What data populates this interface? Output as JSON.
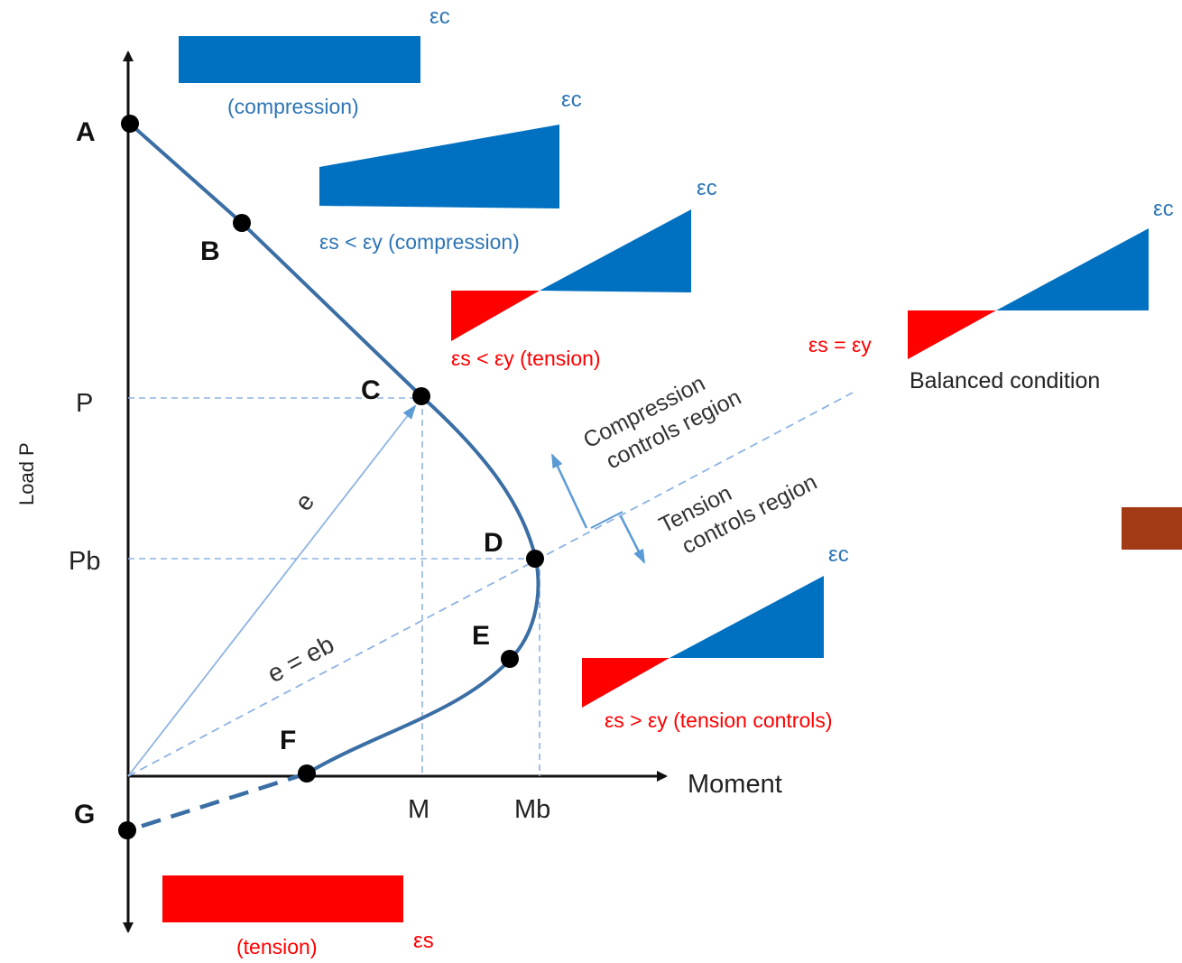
{
  "axes": {
    "y_label": "Load P",
    "x_label": "Moment",
    "y_ticks": {
      "p": "P",
      "pb": "Pb"
    },
    "x_ticks": {
      "m": "M",
      "mb": "Mb"
    }
  },
  "points": {
    "a": "A",
    "b": "B",
    "c": "C",
    "d": "D",
    "e": "E",
    "f": "F",
    "g": "G"
  },
  "lines": {
    "e": "e",
    "eb": "e = eb"
  },
  "regions": {
    "compression_line1": "Compression",
    "compression_line2": "controls region",
    "tension_line1": "Tension",
    "tension_line2": "controls region"
  },
  "strain_diagrams": {
    "pure_compression": {
      "top": "εc",
      "caption": "(compression)"
    },
    "compression_small": {
      "top": "εc",
      "caption": "εs < εy (compression)"
    },
    "tension_small": {
      "top": "εc",
      "caption": "εs < εy (tension)"
    },
    "balanced": {
      "top": "εc",
      "left": "εs = εy",
      "caption": "Balanced condition"
    },
    "tension_controls": {
      "top": "εc",
      "caption": "εs > εy (tension controls)"
    },
    "pure_tension": {
      "side": "εs",
      "caption": "(tension)"
    }
  },
  "colors": {
    "compression": "#0070c0",
    "tension": "#ff0000",
    "curve": "#3a6ea5",
    "guide": "#8db3e2",
    "slide_accent": "#a33a16"
  }
}
